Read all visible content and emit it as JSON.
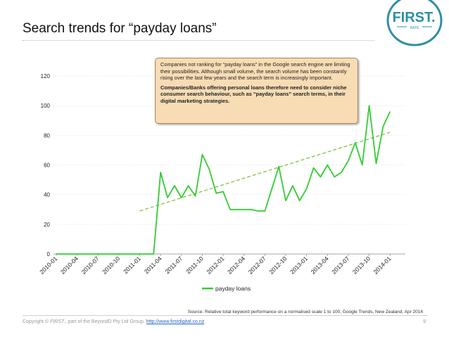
{
  "slide": {
    "title": "Search trends for “payday loans”",
    "page_number": "9"
  },
  "logo": {
    "brand": "FIRST.",
    "sub": "RATE",
    "color": "#2e8fa3"
  },
  "callout": {
    "text": "Companies not ranking for “payday loans” in the Google search engine are limiting their possibilities. Although small volume, the search volume has been constantly rising over the last few years and the search term is increasingly important.",
    "bold_text": "Companies/Banks offering personal loans therefore need to consider niche consumer search behaviour, such as “payday loans” search terms, in their digital marketing strategies."
  },
  "footer": {
    "source": "Source: Relative total keyword performance on a normalised scale 1 to 100, Google Trends, New Zealand, Apr 2014",
    "copyright_prefix": "Copyright © ",
    "copyright_brand": "FIRST.",
    "copyright_suffix": ", part of the BeyondD Pty Ltd Group. ",
    "link": "http://www.firstdigital.co.nz"
  },
  "chart_data": {
    "type": "line",
    "title": "",
    "xlabel": "",
    "ylabel": "",
    "ylim": [
      0,
      120
    ],
    "yticks": [
      0,
      20,
      40,
      60,
      80,
      100,
      120
    ],
    "grid": "horizontal",
    "legend_position": "bottom",
    "x_tick_labels": [
      "2010-01",
      "2010-04",
      "2010-07",
      "2010-10",
      "2011-01",
      "2011-04",
      "2011-07",
      "2011-10",
      "2012-01",
      "2012-04",
      "2012-07",
      "2012-10",
      "2013-01",
      "2013-04",
      "2013-07",
      "2013-10",
      "2014-01"
    ],
    "series": [
      {
        "name": "payday loans",
        "color": "#33cc33",
        "x": [
          "2010-01",
          "2010-02",
          "2010-03",
          "2010-04",
          "2010-05",
          "2010-06",
          "2010-07",
          "2010-08",
          "2010-09",
          "2010-10",
          "2010-11",
          "2010-12",
          "2011-01",
          "2011-02",
          "2011-03",
          "2011-04",
          "2011-05",
          "2011-06",
          "2011-07",
          "2011-08",
          "2011-09",
          "2011-10",
          "2011-11",
          "2011-12",
          "2012-01",
          "2012-02",
          "2012-03",
          "2012-04",
          "2012-05",
          "2012-06",
          "2012-07",
          "2012-08",
          "2012-09",
          "2012-10",
          "2012-11",
          "2012-12",
          "2013-01",
          "2013-02",
          "2013-03",
          "2013-04",
          "2013-05",
          "2013-06",
          "2013-07",
          "2013-08",
          "2013-09",
          "2013-10",
          "2013-11",
          "2013-12",
          "2014-01",
          "2014-02",
          "2014-03"
        ],
        "values": [
          0,
          0,
          0,
          0,
          0,
          0,
          0,
          0,
          0,
          0,
          0,
          0,
          0,
          0,
          0,
          55,
          38,
          46,
          38,
          46,
          39,
          67,
          57,
          41,
          42,
          30,
          30,
          30,
          30,
          29,
          29,
          44,
          59,
          36,
          46,
          36,
          44,
          58,
          52,
          60,
          52,
          55,
          63,
          75,
          60,
          100,
          61,
          86,
          96,
          null,
          null
        ]
      }
    ],
    "trendline": {
      "style": "dashed",
      "color": "#7fc241",
      "x": [
        "2011-01",
        "2014-01"
      ],
      "values": [
        29,
        82
      ]
    }
  }
}
